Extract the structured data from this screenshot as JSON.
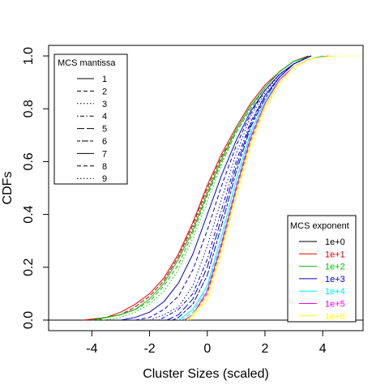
{
  "chart_data": {
    "type": "line",
    "title": "",
    "xlabel": "Cluster Sizes (scaled)",
    "ylabel": "CDFs",
    "xlim": [
      -5.5,
      5.4
    ],
    "ylim": [
      -0.04,
      1.04
    ],
    "x_ticks": [
      -4,
      -2,
      0,
      2,
      4
    ],
    "x_tick_labels": [
      "-4",
      "-2",
      "0",
      "2",
      "4"
    ],
    "y_ticks": [
      0.0,
      0.2,
      0.4,
      0.6,
      0.8,
      1.0
    ],
    "y_tick_labels": [
      "0.0",
      "0.2",
      "0.4",
      "0.6",
      "0.8",
      "1.0"
    ],
    "grid": false,
    "legends": [
      {
        "title": "MCS mantissa",
        "placement": "top-left",
        "entries": [
          {
            "label": "1",
            "dash": "solid"
          },
          {
            "label": "2",
            "dash": "dashed"
          },
          {
            "label": "3",
            "dash": "dotted"
          },
          {
            "label": "4",
            "dash": "dotdash"
          },
          {
            "label": "5",
            "dash": "longdash"
          },
          {
            "label": "6",
            "dash": "twodash"
          },
          {
            "label": "7",
            "dash": "solid"
          },
          {
            "label": "8",
            "dash": "dashed"
          },
          {
            "label": "9",
            "dash": "dotted"
          }
        ]
      },
      {
        "title": "MCS exponent",
        "placement": "bottom-right",
        "entries": [
          {
            "label": "1e+0",
            "color": "#000000"
          },
          {
            "label": "1e+1",
            "color": "#DF0000"
          },
          {
            "label": "1e+2",
            "color": "#00BB00"
          },
          {
            "label": "1e+3",
            "color": "#0000DD"
          },
          {
            "label": "1e+4",
            "color": "#00EEEE"
          },
          {
            "label": "1e+5",
            "color": "#EE00EE"
          },
          {
            "label": "1e+6",
            "color": "#FFFF00"
          }
        ]
      }
    ],
    "series": [
      {
        "color": "#000000",
        "dash": "solid",
        "x": [
          -5.5,
          0.1,
          0.1,
          5.4
        ],
        "y": [
          0,
          0,
          0,
          0
        ]
      },
      {
        "color": "#DF0000",
        "dash": "solid",
        "x": [
          -4.3,
          -3.5,
          -3.0,
          -2.5,
          -2.0,
          -1.5,
          -1.0,
          -0.5,
          0.0,
          0.5,
          1.0,
          1.5,
          2.0,
          2.5,
          3.0,
          3.5
        ],
        "y": [
          0.0,
          0.01,
          0.03,
          0.06,
          0.1,
          0.16,
          0.25,
          0.37,
          0.51,
          0.63,
          0.73,
          0.82,
          0.89,
          0.94,
          0.98,
          1.0
        ]
      },
      {
        "color": "#DF0000",
        "dash": "dashed",
        "x": [
          -4.2,
          -3.5,
          -3.0,
          -2.5,
          -2.0,
          -1.5,
          -1.0,
          -0.5,
          0.0,
          0.5,
          1.0,
          1.5,
          2.0,
          2.5,
          3.0,
          3.6
        ],
        "y": [
          0.0,
          0.01,
          0.02,
          0.05,
          0.09,
          0.15,
          0.24,
          0.36,
          0.5,
          0.62,
          0.72,
          0.81,
          0.88,
          0.94,
          0.98,
          1.0
        ]
      },
      {
        "color": "#DF0000",
        "dash": "dotted",
        "x": [
          -4.1,
          -3.5,
          -3.0,
          -2.5,
          -2.0,
          -1.5,
          -1.0,
          -0.5,
          0.0,
          0.5,
          1.0,
          1.5,
          2.0,
          2.5,
          3.0,
          3.6
        ],
        "y": [
          0.0,
          0.01,
          0.02,
          0.05,
          0.09,
          0.15,
          0.24,
          0.35,
          0.49,
          0.61,
          0.72,
          0.81,
          0.88,
          0.94,
          0.98,
          1.0
        ]
      },
      {
        "color": "#00BB00",
        "dash": "solid",
        "x": [
          -4.0,
          -3.5,
          -3.0,
          -2.5,
          -2.0,
          -1.5,
          -1.0,
          -0.5,
          0.0,
          0.5,
          1.0,
          1.5,
          2.0,
          2.5,
          3.0,
          3.6
        ],
        "y": [
          0.0,
          0.01,
          0.02,
          0.04,
          0.08,
          0.14,
          0.23,
          0.34,
          0.48,
          0.61,
          0.72,
          0.81,
          0.88,
          0.94,
          0.98,
          1.0
        ]
      },
      {
        "color": "#00BB00",
        "dash": "dashed",
        "x": [
          -3.8,
          -3.5,
          -3.0,
          -2.5,
          -2.0,
          -1.5,
          -1.0,
          -0.5,
          0.0,
          0.5,
          1.0,
          1.5,
          2.0,
          2.5,
          3.0,
          3.6
        ],
        "y": [
          0.0,
          0.01,
          0.02,
          0.04,
          0.07,
          0.13,
          0.21,
          0.33,
          0.47,
          0.6,
          0.71,
          0.8,
          0.88,
          0.94,
          0.98,
          1.0
        ]
      },
      {
        "color": "#00BB00",
        "dash": "dotted",
        "x": [
          -3.6,
          -3.0,
          -2.5,
          -2.0,
          -1.5,
          -1.0,
          -0.5,
          0.0,
          0.5,
          1.0,
          1.5,
          2.0,
          2.5,
          3.0,
          3.6
        ],
        "y": [
          0.0,
          0.01,
          0.03,
          0.06,
          0.11,
          0.19,
          0.31,
          0.45,
          0.59,
          0.71,
          0.8,
          0.88,
          0.94,
          0.98,
          1.0
        ]
      },
      {
        "color": "#0000DD",
        "dash": "solid",
        "x": [
          -3.0,
          -2.5,
          -2.0,
          -1.5,
          -1.0,
          -0.5,
          0.0,
          0.5,
          1.0,
          1.5,
          2.0,
          2.5,
          3.0,
          3.6
        ],
        "y": [
          0.0,
          0.01,
          0.03,
          0.07,
          0.14,
          0.25,
          0.4,
          0.55,
          0.68,
          0.79,
          0.87,
          0.93,
          0.97,
          1.0
        ]
      },
      {
        "color": "#0000DD",
        "dash": "dashed",
        "x": [
          -2.5,
          -2.0,
          -1.5,
          -1.0,
          -0.5,
          0.0,
          0.5,
          1.0,
          1.5,
          2.0,
          2.5,
          3.0,
          3.6
        ],
        "y": [
          0.0,
          0.01,
          0.04,
          0.09,
          0.19,
          0.34,
          0.51,
          0.66,
          0.78,
          0.87,
          0.93,
          0.97,
          1.0
        ]
      },
      {
        "color": "#0000DD",
        "dash": "dotted",
        "x": [
          -2.0,
          -1.5,
          -1.0,
          -0.5,
          0.0,
          0.5,
          1.0,
          1.5,
          2.0,
          2.5,
          3.0,
          3.6
        ],
        "y": [
          0.0,
          0.02,
          0.05,
          0.13,
          0.28,
          0.46,
          0.63,
          0.77,
          0.86,
          0.93,
          0.97,
          1.0
        ]
      },
      {
        "color": "#0000DD",
        "dash": "dotdash",
        "x": [
          -1.7,
          -1.5,
          -1.0,
          -0.5,
          0.0,
          0.5,
          1.0,
          1.5,
          2.0,
          2.5,
          3.0,
          3.6
        ],
        "y": [
          0.0,
          0.01,
          0.04,
          0.1,
          0.23,
          0.42,
          0.6,
          0.75,
          0.85,
          0.92,
          0.97,
          1.0
        ]
      },
      {
        "color": "#0000DD",
        "dash": "longdash",
        "x": [
          -1.4,
          -1.0,
          -0.5,
          0.0,
          0.5,
          1.0,
          1.5,
          2.0,
          2.5,
          3.0,
          3.6
        ],
        "y": [
          0.0,
          0.02,
          0.08,
          0.2,
          0.39,
          0.58,
          0.74,
          0.85,
          0.92,
          0.97,
          1.0
        ]
      },
      {
        "color": "#0000DD",
        "dash": "twodash",
        "x": [
          -1.2,
          -1.0,
          -0.5,
          0.0,
          0.5,
          1.0,
          1.5,
          2.0,
          2.5,
          3.0,
          3.6
        ],
        "y": [
          0.0,
          0.01,
          0.06,
          0.17,
          0.36,
          0.56,
          0.73,
          0.84,
          0.92,
          0.97,
          1.0
        ]
      },
      {
        "color": "#00EEEE",
        "dash": "solid",
        "x": [
          -1.0,
          -0.5,
          0.0,
          0.5,
          1.0,
          1.5,
          2.0,
          2.5,
          3.0,
          3.6,
          4.0
        ],
        "y": [
          0.0,
          0.04,
          0.13,
          0.32,
          0.53,
          0.71,
          0.83,
          0.91,
          0.96,
          0.99,
          1.0
        ]
      },
      {
        "color": "#00EEEE",
        "dash": "dashed",
        "x": [
          -0.9,
          -0.5,
          0.0,
          0.5,
          1.0,
          1.5,
          2.0,
          2.5,
          3.0,
          3.6,
          4.1
        ],
        "y": [
          0.0,
          0.03,
          0.12,
          0.3,
          0.51,
          0.7,
          0.82,
          0.91,
          0.96,
          0.99,
          1.0
        ]
      },
      {
        "color": "#EE00EE",
        "dash": "solid",
        "x": [
          -0.8,
          -0.5,
          0.0,
          0.5,
          1.0,
          1.5,
          2.0,
          2.5,
          3.0,
          3.6,
          4.2
        ],
        "y": [
          0.0,
          0.02,
          0.11,
          0.29,
          0.5,
          0.69,
          0.82,
          0.91,
          0.96,
          0.99,
          1.0
        ]
      },
      {
        "color": "#EE00EE",
        "dash": "dashed",
        "x": [
          -0.8,
          -0.5,
          0.0,
          0.5,
          1.0,
          1.5,
          2.0,
          2.5,
          3.0,
          3.6,
          4.2
        ],
        "y": [
          0.0,
          0.02,
          0.1,
          0.28,
          0.49,
          0.68,
          0.81,
          0.9,
          0.96,
          0.99,
          1.0
        ]
      },
      {
        "color": "#FFFF00",
        "dash": "solid",
        "x": [
          -0.7,
          -0.5,
          0.0,
          0.5,
          1.0,
          1.5,
          2.0,
          2.5,
          3.0,
          3.6,
          4.3
        ],
        "y": [
          0.0,
          0.02,
          0.09,
          0.27,
          0.48,
          0.67,
          0.81,
          0.9,
          0.96,
          0.99,
          1.0
        ]
      },
      {
        "color": "#FFFF00",
        "dash": "dashed",
        "x": [
          -0.7,
          -0.5,
          0.0,
          0.5,
          1.0,
          1.5,
          2.0,
          2.5,
          3.0,
          3.6,
          4.4
        ],
        "y": [
          0.0,
          0.01,
          0.08,
          0.26,
          0.47,
          0.66,
          0.8,
          0.9,
          0.96,
          0.99,
          1.0
        ]
      },
      {
        "color": "#FFFF00",
        "dash": "dotted",
        "x": [
          -0.6,
          0.0,
          0.5,
          1.0,
          1.5,
          2.0,
          2.5,
          3.0,
          3.6,
          4.4,
          5.4
        ],
        "y": [
          0.0,
          0.07,
          0.25,
          0.46,
          0.65,
          0.8,
          0.89,
          0.95,
          0.99,
          1.0,
          1.0
        ]
      }
    ]
  }
}
